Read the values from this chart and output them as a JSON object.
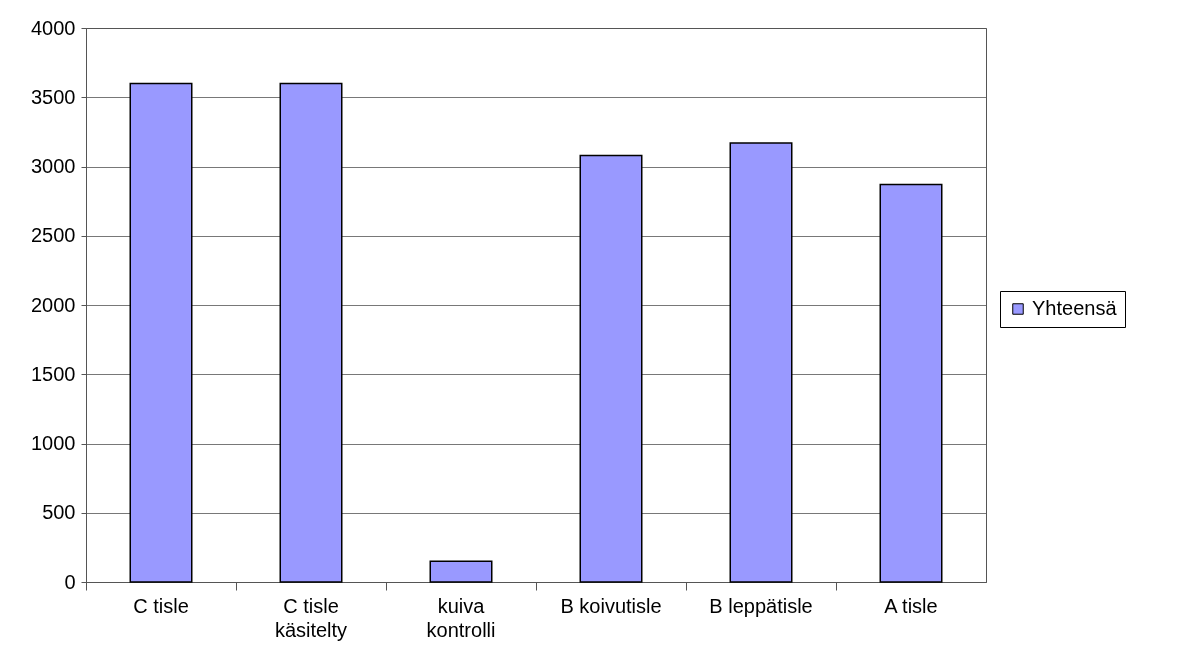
{
  "chart_data": {
    "type": "bar",
    "categories": [
      "C tisle",
      "C tisle käsitelty",
      "kuiva kontrolli",
      "B koivutisle",
      "B leppätisle",
      "A tisle"
    ],
    "series": [
      {
        "name": "Yhteensä",
        "color": "#9999ff",
        "values": [
          3600,
          3600,
          150,
          3080,
          3170,
          2870
        ]
      }
    ],
    "ylim": [
      0,
      4000
    ],
    "yticks": [
      0,
      500,
      1000,
      1500,
      2000,
      2500,
      3000,
      3500,
      4000
    ],
    "grid": "y",
    "legend": "right"
  }
}
